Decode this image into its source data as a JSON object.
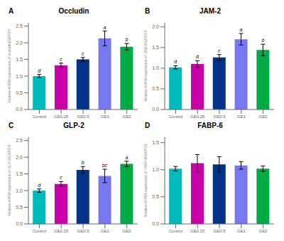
{
  "chart_data": [
    {
      "type": "bar",
      "label": "A",
      "title": "Occludin",
      "ylabel": "Relative mRNA expression of occludin/GAPDH",
      "categories": [
        "Control",
        "GE0.25",
        "GE0.5",
        "GE1",
        "GE2"
      ],
      "values": [
        1.0,
        1.32,
        1.5,
        2.13,
        1.88
      ],
      "errors": [
        0.05,
        0.07,
        0.06,
        0.22,
        0.1
      ],
      "annotations": [
        "d",
        "c",
        "c",
        "a",
        "b"
      ],
      "colors": [
        "#00BBBB",
        "#CC00AA",
        "#003388",
        "#7777EE",
        "#00AA44"
      ],
      "ylim": [
        0,
        2.6
      ],
      "yticks": [
        {
          "value": 0.0,
          "label": "0.0"
        },
        0.5,
        {
          "value": 1.0,
          "label": "1.0"
        },
        1.5,
        {
          "value": 2.0,
          "label": "2.0"
        },
        2.5
      ],
      "grid": false
    },
    {
      "type": "bar",
      "label": "B",
      "title": "JAM-2",
      "ylabel": "Relative mRNA expression of JAM-2/GAPDH",
      "categories": [
        "Control",
        "GE0.25",
        "GE0.5",
        "GE1",
        "GE2"
      ],
      "values": [
        1.02,
        1.1,
        1.26,
        1.7,
        1.44
      ],
      "errors": [
        0.04,
        0.08,
        0.07,
        0.14,
        0.14
      ],
      "annotations": [
        "d",
        "d",
        "c",
        "a",
        "b"
      ],
      "colors": [
        "#00BBBB",
        "#CC00AA",
        "#003388",
        "#7777EE",
        "#00AA44"
      ],
      "ylim": [
        0,
        2.1
      ],
      "yticks": [
        {
          "value": 0.0,
          "label": "0.0"
        },
        0.5,
        {
          "value": 1.0,
          "label": "1.0"
        },
        1.5,
        {
          "value": 2.0,
          "label": "2.0"
        }
      ],
      "grid": false
    },
    {
      "type": "bar",
      "label": "C",
      "title": "GLP-2",
      "ylabel": "Relative mRNA expression of GLP-2/GAPDH",
      "categories": [
        "Control",
        "GE0.25",
        "GE0.5",
        "GE1",
        "GE2"
      ],
      "values": [
        1.0,
        1.2,
        1.62,
        1.44,
        1.8
      ],
      "errors": [
        0.05,
        0.07,
        0.1,
        0.2,
        0.08
      ],
      "annotations": [
        "d",
        "c",
        "b",
        "bc",
        "a"
      ],
      "colors": [
        "#00BBBB",
        "#CC00AA",
        "#003388",
        "#7777EE",
        "#00AA44"
      ],
      "ylim": [
        0,
        2.6
      ],
      "yticks": [
        {
          "value": 0.0,
          "label": "0.0"
        },
        0.5,
        {
          "value": 1.0,
          "label": "1.0"
        },
        1.5,
        {
          "value": 2.0,
          "label": "2.0"
        },
        2.5
      ],
      "grid": false
    },
    {
      "type": "bar",
      "label": "D",
      "title": "FABP-6",
      "ylabel": "Relative mRNA expression of FABP-6/GAPDH",
      "categories": [
        "Control",
        "GE0.25",
        "GE0.5",
        "GE1",
        "GE2"
      ],
      "values": [
        1.02,
        1.12,
        1.1,
        1.08,
        1.02
      ],
      "errors": [
        0.04,
        0.16,
        0.14,
        0.07,
        0.05
      ],
      "colors": [
        "#00BBBB",
        "#CC00AA",
        "#003388",
        "#7777EE",
        "#00AA44"
      ],
      "ylim": [
        0,
        1.6
      ],
      "yticks": [
        {
          "value": 0.0,
          "label": "0.0"
        },
        0.5,
        {
          "value": 1.0,
          "label": "1.0"
        },
        1.5
      ],
      "grid": false
    }
  ]
}
